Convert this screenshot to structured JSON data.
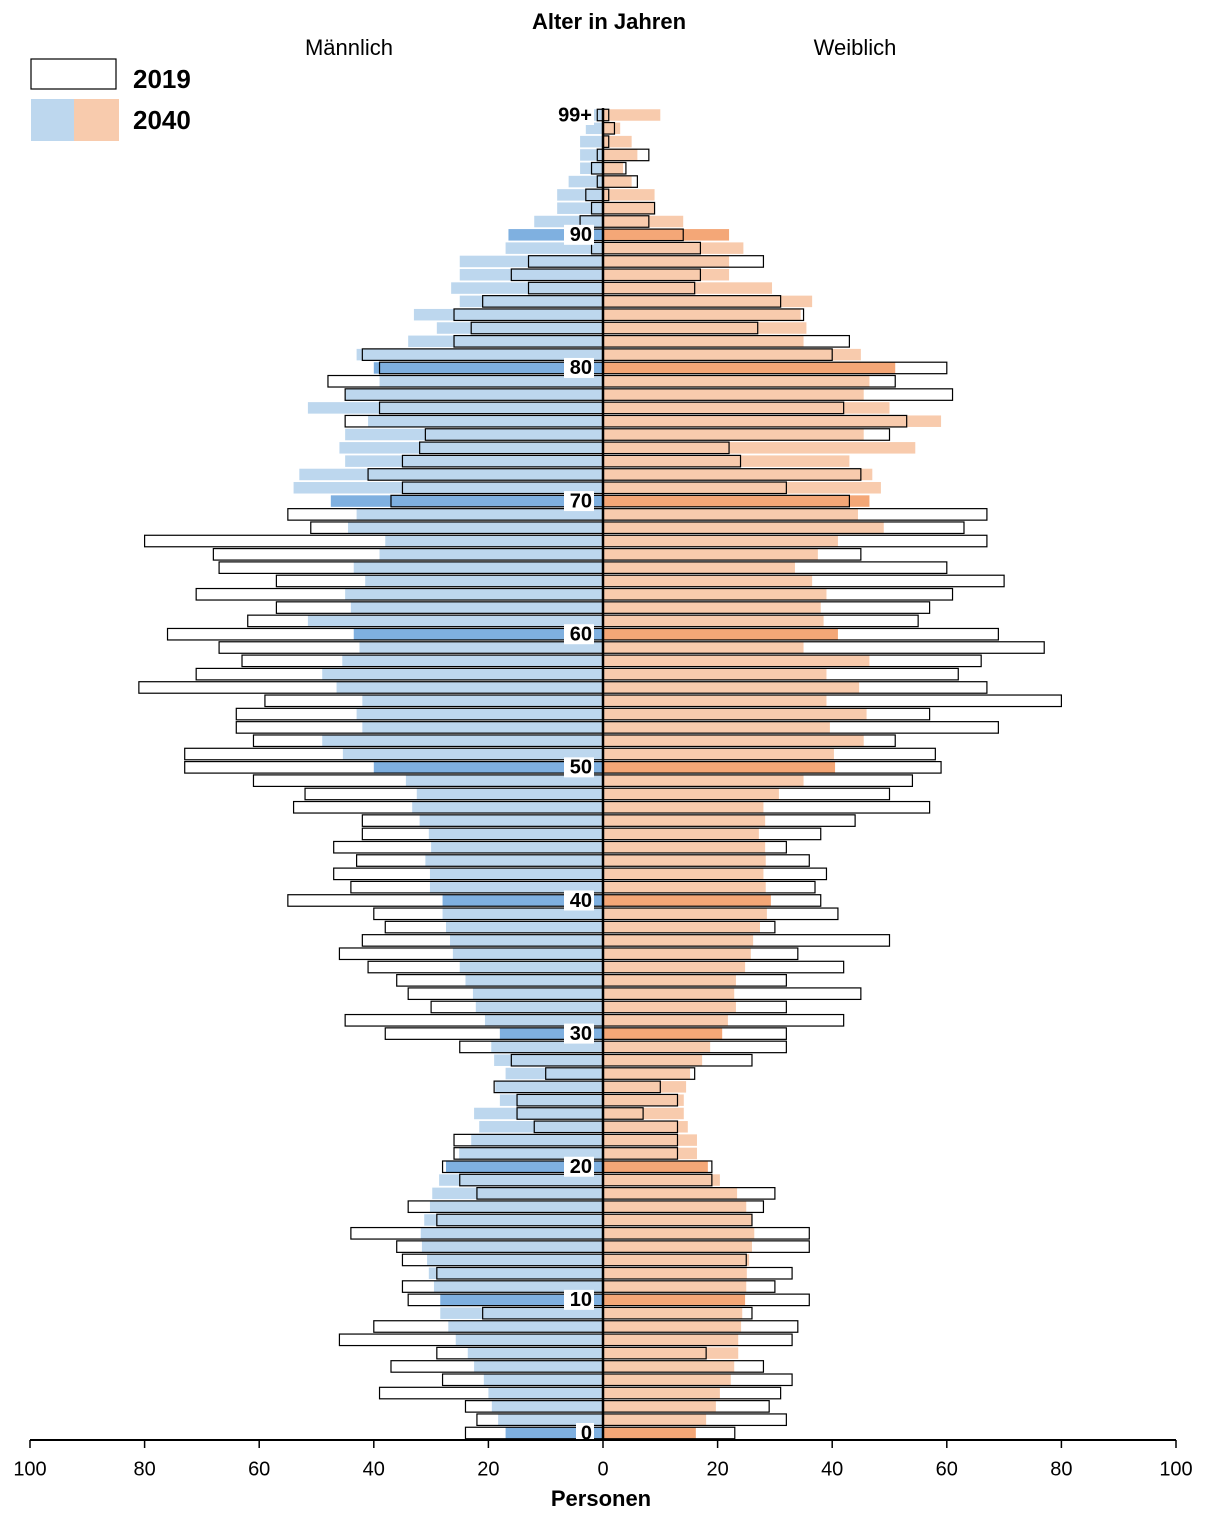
{
  "chart_data": {
    "type": "pyramid",
    "title": "Alter in Jahren",
    "xlabel": "Personen",
    "groups": [
      "Männlich",
      "Weiblich"
    ],
    "categories": [
      "0",
      null,
      null,
      null,
      null,
      null,
      null,
      null,
      null,
      null,
      "10",
      null,
      null,
      null,
      null,
      null,
      null,
      null,
      null,
      null,
      "20",
      null,
      null,
      null,
      null,
      null,
      null,
      null,
      null,
      null,
      "30",
      null,
      null,
      null,
      null,
      null,
      null,
      null,
      null,
      null,
      "40",
      null,
      null,
      null,
      null,
      null,
      null,
      null,
      null,
      null,
      "50",
      null,
      null,
      null,
      null,
      null,
      null,
      null,
      null,
      null,
      "60",
      null,
      null,
      null,
      null,
      null,
      null,
      null,
      null,
      null,
      "70",
      null,
      null,
      null,
      null,
      null,
      null,
      null,
      null,
      null,
      "80",
      null,
      null,
      null,
      null,
      null,
      null,
      null,
      null,
      null,
      "90",
      null,
      null,
      null,
      null,
      null,
      null,
      null,
      null,
      "99+"
    ],
    "series": [
      {
        "name": "2019",
        "style": "outline",
        "color": "#000000",
        "male": [
          24,
          22,
          24,
          39,
          28,
          37,
          29,
          46,
          40,
          21,
          34,
          35,
          29,
          35,
          36,
          44,
          29,
          34,
          22,
          25,
          28,
          26,
          26,
          12,
          15,
          15,
          19,
          10,
          16,
          25,
          38,
          45,
          30,
          34,
          36,
          41,
          46,
          42,
          38,
          40,
          55,
          44,
          47,
          43,
          47,
          42,
          42,
          54,
          52,
          61,
          73,
          73,
          61,
          64,
          64,
          59,
          81,
          71,
          63,
          67,
          76,
          62,
          57,
          71,
          57,
          67,
          68,
          80,
          51,
          55,
          37,
          35,
          41,
          35,
          32,
          31,
          45,
          39,
          45,
          48,
          39,
          42,
          26,
          23,
          26,
          21,
          13,
          16,
          13,
          2,
          2,
          4,
          2,
          3,
          1,
          2,
          1,
          0,
          0,
          1
        ],
        "female": [
          23,
          32,
          29,
          31,
          33,
          28,
          18,
          33,
          34,
          26,
          36,
          30,
          33,
          25,
          36,
          36,
          26,
          28,
          30,
          19,
          19,
          13,
          13,
          13,
          7,
          13,
          10,
          16,
          26,
          32,
          32,
          42,
          32,
          45,
          32,
          42,
          34,
          50,
          30,
          41,
          38,
          37,
          39,
          36,
          32,
          38,
          44,
          57,
          50,
          54,
          59,
          58,
          51,
          69,
          57,
          80,
          67,
          62,
          66,
          77,
          69,
          55,
          57,
          61,
          70,
          60,
          45,
          67,
          63,
          67,
          43,
          32,
          45,
          24,
          22,
          50,
          53,
          42,
          61,
          51,
          60,
          40,
          43,
          27,
          35,
          31,
          16,
          17,
          28,
          17,
          14,
          8,
          9,
          1,
          6,
          4,
          8,
          1,
          2,
          1
        ]
      },
      {
        "name": "2040",
        "style": "fill",
        "male_color": "#bdd7ee",
        "male_highlight_color": "#7fb0e0",
        "female_color": "#f8cbad",
        "female_highlight_color": "#f4a777",
        "male": [
          17,
          18.3,
          19.4,
          20,
          20.8,
          22.5,
          23.6,
          25.7,
          27,
          28.4,
          28.4,
          29.5,
          30.4,
          30.7,
          31.6,
          31.8,
          31.2,
          30.2,
          29.8,
          28.6,
          27.4,
          25.1,
          23,
          21.6,
          22.5,
          18,
          18.8,
          17,
          19,
          19.5,
          18,
          20.6,
          22.2,
          22.7,
          24,
          25,
          26.2,
          26.7,
          27.4,
          28,
          28,
          30.2,
          30.2,
          31,
          30,
          30.4,
          32,
          33.3,
          32.5,
          34.4,
          40,
          45.4,
          49,
          42,
          43,
          42,
          46.5,
          49,
          45.5,
          42.5,
          43.5,
          51.5,
          44,
          45,
          41.5,
          43.5,
          39,
          38,
          44.5,
          43,
          47.5,
          54,
          53,
          45,
          46,
          45,
          41,
          51.5,
          45,
          39,
          40,
          43,
          34,
          29,
          33,
          25,
          26.5,
          25,
          25,
          17,
          16.5,
          12,
          8,
          8,
          6,
          4,
          4,
          4,
          3,
          2
        ],
        "female": [
          16.2,
          18,
          19.7,
          20.4,
          22.3,
          22.9,
          23.6,
          23.6,
          24.1,
          24.3,
          24.8,
          25,
          25.1,
          25.5,
          26,
          26.4,
          26,
          25,
          23.4,
          20.4,
          18.3,
          16.4,
          16.4,
          14.8,
          14.1,
          14.1,
          14.5,
          15.2,
          17.3,
          18.7,
          20.8,
          21.8,
          23.2,
          22.9,
          23.2,
          24.8,
          25.8,
          26.2,
          27.4,
          28.6,
          29.3,
          28.4,
          28,
          28.4,
          28.3,
          27.2,
          28.3,
          28,
          30.7,
          35,
          40.5,
          40.3,
          45.5,
          39.6,
          46,
          39,
          44.7,
          39,
          46.5,
          35,
          41,
          38.5,
          38,
          39,
          36.5,
          33.5,
          37.5,
          41,
          49,
          44.5,
          46.5,
          48.5,
          47,
          43,
          54.5,
          45.5,
          59,
          50,
          45.5,
          46.5,
          51,
          45,
          35,
          35.5,
          34.5,
          36.5,
          29.5,
          22,
          22,
          24.5,
          22,
          14,
          9,
          9,
          5,
          3.5,
          6,
          5,
          3,
          10
        ]
      }
    ],
    "highlight_every": 10,
    "xlim": [
      0,
      100
    ],
    "xticks": [
      0,
      20,
      40,
      60,
      80,
      100
    ]
  }
}
